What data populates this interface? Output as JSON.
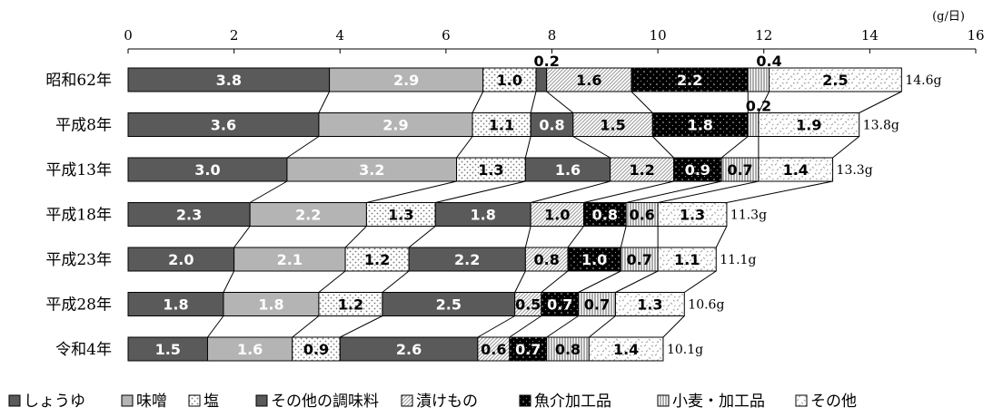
{
  "chart_data": {
    "type": "bar",
    "orientation": "horizontal",
    "stacked": true,
    "unit": "(g/日)",
    "xlim": [
      0,
      16
    ],
    "xticks": [
      "0",
      "2",
      "4",
      "6",
      "8",
      "10",
      "12",
      "14",
      "16"
    ],
    "categories": [
      "昭和62年",
      "平成8年",
      "平成13年",
      "平成18年",
      "平成23年",
      "平成28年",
      "令和4年"
    ],
    "totals": [
      "14.6g",
      "13.8g",
      "13.3g",
      "11.3g",
      "11.1g",
      "10.6g",
      "10.1g"
    ],
    "series": [
      {
        "name": "しょうゆ",
        "values": [
          3.8,
          3.6,
          3.0,
          2.3,
          2.0,
          1.8,
          1.5
        ],
        "labels": [
          "3.8",
          "3.6",
          "3.0",
          "2.3",
          "2.0",
          "1.8",
          "1.5"
        ],
        "color": "#5a5a5a",
        "pattern": "solid"
      },
      {
        "name": "味噌",
        "values": [
          2.9,
          2.9,
          3.2,
          2.2,
          2.1,
          1.8,
          1.6
        ],
        "labels": [
          "2.9",
          "2.9",
          "3.2",
          "2.2",
          "2.1",
          "1.8",
          "1.6"
        ],
        "color": "#b4b4b4",
        "pattern": "solid"
      },
      {
        "name": "塩",
        "values": [
          1.0,
          1.1,
          1.3,
          1.3,
          1.2,
          1.2,
          0.9
        ],
        "labels": [
          "1.0",
          "1.1",
          "1.3",
          "1.3",
          "1.2",
          "1.2",
          "0.9"
        ],
        "color": "#ffffff",
        "pattern": "dots-light"
      },
      {
        "name": "その他の調味料",
        "values": [
          0.2,
          0.8,
          1.6,
          1.8,
          2.2,
          2.5,
          2.6
        ],
        "labels": [
          "0.2",
          "0.8",
          "1.6",
          "1.8",
          "2.2",
          "2.5",
          "2.6"
        ],
        "color": "#5a5a5a",
        "pattern": "solid"
      },
      {
        "name": "漬けもの",
        "values": [
          1.6,
          1.5,
          1.2,
          1.0,
          0.8,
          0.5,
          0.6
        ],
        "labels": [
          "1.6",
          "1.5",
          "1.2",
          "1.0",
          "0.8",
          "0.5",
          "0.6"
        ],
        "color": "#ffffff",
        "pattern": "diagonal"
      },
      {
        "name": "魚介加工品",
        "values": [
          2.2,
          1.8,
          0.9,
          0.8,
          1.0,
          0.7,
          0.7
        ],
        "labels": [
          "2.2",
          "1.8",
          "0.9",
          "0.8",
          "1.0",
          "0.7",
          "0.7"
        ],
        "color": "#000000",
        "pattern": "dots-dark"
      },
      {
        "name": "小麦・加工品",
        "values": [
          0.4,
          0.2,
          0.7,
          0.6,
          0.7,
          0.7,
          0.8
        ],
        "labels": [
          "0.4",
          "0.2",
          "0.7",
          "0.6",
          "0.7",
          "0.7",
          "0.8"
        ],
        "color": "#ffffff",
        "pattern": "vertical"
      },
      {
        "name": "その他",
        "values": [
          2.5,
          1.9,
          1.4,
          1.3,
          1.1,
          1.3,
          1.4
        ],
        "labels": [
          "2.5",
          "1.9",
          "1.4",
          "1.3",
          "1.1",
          "1.3",
          "1.4"
        ],
        "color": "#ffffff",
        "pattern": "scatter"
      }
    ],
    "legend_position": "bottom",
    "grid": false
  }
}
